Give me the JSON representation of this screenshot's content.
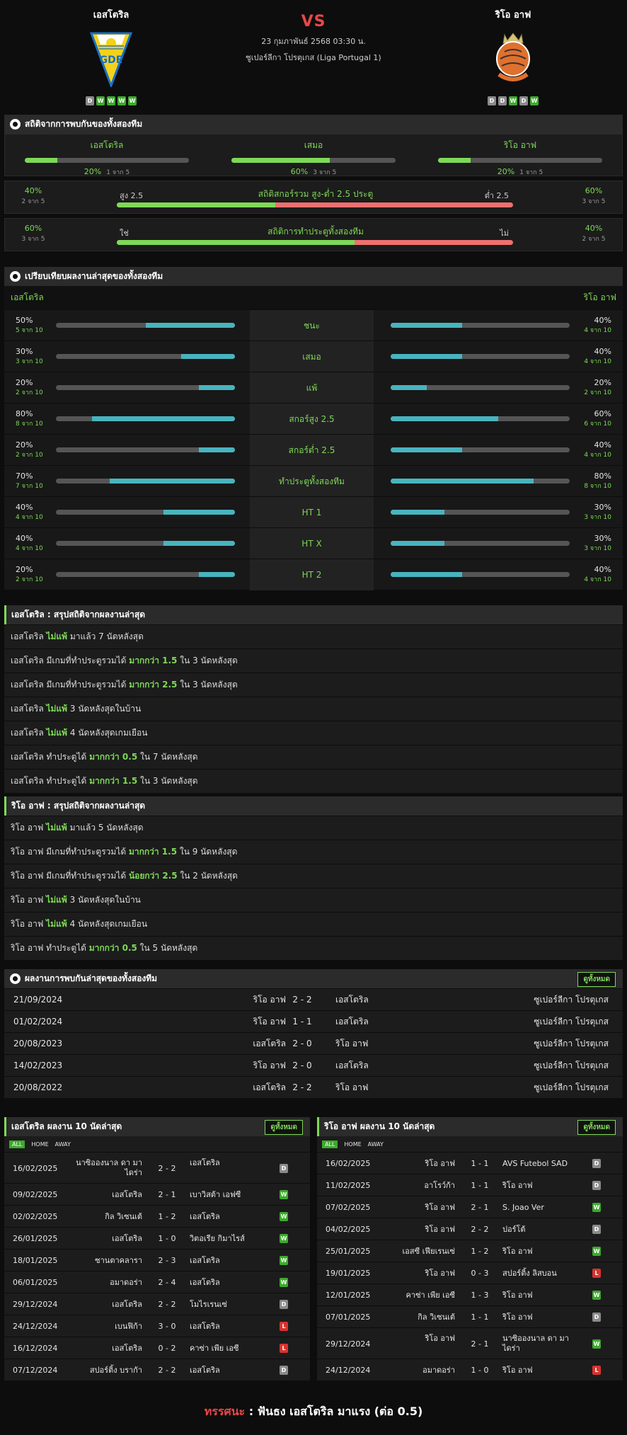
{
  "header": {
    "home_name": "เอสโตริล",
    "away_name": "ริโอ อาฟ",
    "vs": "VS",
    "datetime": "23 กุมภาพันธ์ 2568 03:30 น.",
    "league": "ซูเปอร์ลีกา โปรตุเกส (Liga Portugal 1)",
    "home_form": [
      "D",
      "W",
      "W",
      "W",
      "W"
    ],
    "away_form": [
      "D",
      "D",
      "W",
      "D",
      "W"
    ]
  },
  "h2h_stats": {
    "title": "สถิติจากการพบกันของทั้งสองทีม",
    "cols": [
      {
        "label": "เอสโตริล",
        "pct": "20%",
        "sub": "1 จาก 5",
        "value": 0.2
      },
      {
        "label": "เสมอ",
        "pct": "60%",
        "sub": "3 จาก 5",
        "value": 0.6
      },
      {
        "label": "ริโอ อาฟ",
        "pct": "20%",
        "sub": "1 จาก 5",
        "value": 0.2
      }
    ],
    "ou": {
      "title": "สถิติสกอร์รวม สูง-ต่ำ 2.5 ประตู",
      "left_label": "สูง 2.5",
      "right_label": "ต่ำ 2.5",
      "left_pct": "40%",
      "left_sub": "2 จาก 5",
      "right_pct": "60%",
      "right_sub": "3 จาก 5",
      "left_value": 0.4
    },
    "btts": {
      "title": "สถิติการทำประตูทั้งสองทีม",
      "left_label": "ใช่",
      "right_label": "ไม่",
      "left_pct": "60%",
      "left_sub": "3 จาก 5",
      "right_pct": "40%",
      "right_sub": "2 จาก 5",
      "left_value": 0.6
    }
  },
  "compare": {
    "title": "เปรียบเทียบผลงานล่าสุดของทั้งสองทีม",
    "home": "เอสโตริล",
    "away": "ริโอ อาฟ",
    "rows": [
      {
        "label": "ชนะ",
        "hp": "50%",
        "hs": "5 จาก 10",
        "hv": 0.5,
        "ap": "40%",
        "as": "4 จาก 10",
        "av": 0.4
      },
      {
        "label": "เสมอ",
        "hp": "30%",
        "hs": "3 จาก 10",
        "hv": 0.3,
        "ap": "40%",
        "as": "4 จาก 10",
        "av": 0.4
      },
      {
        "label": "แพ้",
        "hp": "20%",
        "hs": "2 จาก 10",
        "hv": 0.2,
        "ap": "20%",
        "as": "2 จาก 10",
        "av": 0.2
      },
      {
        "label": "สกอร์สูง 2.5",
        "hp": "80%",
        "hs": "8 จาก 10",
        "hv": 0.8,
        "ap": "60%",
        "as": "6 จาก 10",
        "av": 0.6
      },
      {
        "label": "สกอร์ต่ำ 2.5",
        "hp": "20%",
        "hs": "2 จาก 10",
        "hv": 0.2,
        "ap": "40%",
        "as": "4 จาก 10",
        "av": 0.4
      },
      {
        "label": "ทำประตูทั้งสองทีม",
        "hp": "70%",
        "hs": "7 จาก 10",
        "hv": 0.7,
        "ap": "80%",
        "as": "8 จาก 10",
        "av": 0.8
      },
      {
        "label": "HT 1",
        "hp": "40%",
        "hs": "4 จาก 10",
        "hv": 0.4,
        "ap": "30%",
        "as": "3 จาก 10",
        "av": 0.3
      },
      {
        "label": "HT X",
        "hp": "40%",
        "hs": "4 จาก 10",
        "hv": 0.4,
        "ap": "30%",
        "as": "3 จาก 10",
        "av": 0.3
      },
      {
        "label": "HT 2",
        "hp": "20%",
        "hs": "2 จาก 10",
        "hv": 0.2,
        "ap": "40%",
        "as": "4 จาก 10",
        "av": 0.4
      }
    ]
  },
  "home_streaks": {
    "title": "เอสโตริล : สรุปสถิติจากผลงานล่าสุด",
    "rows": [
      [
        "เอสโตริล ",
        "ไม่แพ้",
        " มาแล้ว 7 นัดหลังสุด"
      ],
      [
        "เอสโตริล มีเกมที่ทำประตูรวมได้ ",
        "มากกว่า 1.5",
        " ใน 3 นัดหลังสุด"
      ],
      [
        "เอสโตริล มีเกมที่ทำประตูรวมได้ ",
        "มากกว่า 2.5",
        " ใน 3 นัดหลังสุด"
      ],
      [
        "เอสโตริล ",
        "ไม่แพ้",
        " 3 นัดหลังสุดในบ้าน"
      ],
      [
        "เอสโตริล ",
        "ไม่แพ้",
        " 4 นัดหลังสุดเกมเยือน"
      ],
      [
        "เอสโตริล ทำประตูได้ ",
        "มากกว่า 0.5",
        " ใน 7 นัดหลังสุด"
      ],
      [
        "เอสโตริล ทำประตูได้ ",
        "มากกว่า 1.5",
        " ใน 3 นัดหลังสุด"
      ]
    ]
  },
  "away_streaks": {
    "title": "ริโอ อาฟ : สรุปสถิติจากผลงานล่าสุด",
    "rows": [
      [
        "ริโอ อาฟ ",
        "ไม่แพ้",
        " มาแล้ว 5 นัดหลังสุด"
      ],
      [
        "ริโอ อาฟ มีเกมที่ทำประตูรวมได้ ",
        "มากกว่า 1.5",
        " ใน 9 นัดหลังสุด"
      ],
      [
        "ริโอ อาฟ มีเกมที่ทำประตูรวมได้ ",
        "น้อยกว่า 2.5",
        " ใน 2 นัดหลังสุด"
      ],
      [
        "ริโอ อาฟ ",
        "ไม่แพ้",
        " 3 นัดหลังสุดในบ้าน"
      ],
      [
        "ริโอ อาฟ ",
        "ไม่แพ้",
        " 4 นัดหลังสุดเกมเยือน"
      ],
      [
        "ริโอ อาฟ ทำประตูได้ ",
        "มากกว่า 0.5",
        " ใน 5 นัดหลังสุด"
      ]
    ]
  },
  "h2h_results": {
    "title": "ผลงานการพบกันล่าสุดของทั้งสองทีม",
    "view_all": "ดูทั้งหมด",
    "rows": [
      {
        "date": "21/09/2024",
        "home": "ริโอ อาฟ",
        "score": "2 - 2",
        "away": "เอสโตริล",
        "league": "ซูเปอร์ลีกา โปรตุเกส"
      },
      {
        "date": "01/02/2024",
        "home": "ริโอ อาฟ",
        "score": "1 - 1",
        "away": "เอสโตริล",
        "league": "ซูเปอร์ลีกา โปรตุเกส"
      },
      {
        "date": "20/08/2023",
        "home": "เอสโตริล",
        "score": "2 - 0",
        "away": "ริโอ อาฟ",
        "league": "ซูเปอร์ลีกา โปรตุเกส"
      },
      {
        "date": "14/02/2023",
        "home": "ริโอ อาฟ",
        "score": "2 - 0",
        "away": "เอสโตริล",
        "league": "ซูเปอร์ลีกา โปรตุเกส"
      },
      {
        "date": "20/08/2022",
        "home": "เอสโตริล",
        "score": "2 - 2",
        "away": "ริโอ อาฟ",
        "league": "ซูเปอร์ลีกา โปรตุเกส"
      }
    ]
  },
  "home_last10": {
    "title": "เอสโตริล ผลงาน 10 นัดล่าสุด",
    "view_all": "ดูทั้งหมด",
    "tabs": [
      "ALL",
      "HOME",
      "AWAY"
    ],
    "rows": [
      {
        "date": "16/02/2025",
        "home": "นาซิอองนาล ดา มาไดร่า",
        "score": "2 - 2",
        "away": "เอสโตริล",
        "res": "D"
      },
      {
        "date": "09/02/2025",
        "home": "เอสโตริล",
        "score": "2 - 1",
        "away": "เบาวิสต้า เอฟซี",
        "res": "W"
      },
      {
        "date": "02/02/2025",
        "home": "กิล วิเซนเต้",
        "score": "1 - 2",
        "away": "เอสโตริล",
        "res": "W"
      },
      {
        "date": "26/01/2025",
        "home": "เอสโตริล",
        "score": "1 - 0",
        "away": "วิตอเรีย กิมาไรส์",
        "res": "W"
      },
      {
        "date": "18/01/2025",
        "home": "ซานตาคลารา",
        "score": "2 - 3",
        "away": "เอสโตริล",
        "res": "W"
      },
      {
        "date": "06/01/2025",
        "home": "อมาดอร่า",
        "score": "2 - 4",
        "away": "เอสโตริล",
        "res": "W"
      },
      {
        "date": "29/12/2024",
        "home": "เอสโตริล",
        "score": "2 - 2",
        "away": "โมไรเรนเซ่",
        "res": "D"
      },
      {
        "date": "24/12/2024",
        "home": "เบนฟิก้า",
        "score": "3 - 0",
        "away": "เอสโตริล",
        "res": "L"
      },
      {
        "date": "16/12/2024",
        "home": "เอสโตริล",
        "score": "0 - 2",
        "away": "คาซ่า เพีย เอซี",
        "res": "L"
      },
      {
        "date": "07/12/2024",
        "home": "สปอร์ติ้ง บรากัา",
        "score": "2 - 2",
        "away": "เอสโตริล",
        "res": "D"
      }
    ]
  },
  "away_last10": {
    "title": "ริโอ อาฟ ผลงาน 10 นัดล่าสุด",
    "view_all": "ดูทั้งหมด",
    "tabs": [
      "ALL",
      "HOME",
      "AWAY"
    ],
    "rows": [
      {
        "date": "16/02/2025",
        "home": "ริโอ อาฟ",
        "score": "1 - 1",
        "away": "AVS Futebol SAD",
        "res": "D"
      },
      {
        "date": "11/02/2025",
        "home": "อาโรว์ก้า",
        "score": "1 - 1",
        "away": "ริโอ อาฟ",
        "res": "D"
      },
      {
        "date": "07/02/2025",
        "home": "ริโอ อาฟ",
        "score": "2 - 1",
        "away": "S. Joao Ver",
        "res": "W"
      },
      {
        "date": "04/02/2025",
        "home": "ริโอ อาฟ",
        "score": "2 - 2",
        "away": "ปอร์โต้",
        "res": "D"
      },
      {
        "date": "25/01/2025",
        "home": "เอสซี เฟียเรนเซ่",
        "score": "1 - 2",
        "away": "ริโอ อาฟ",
        "res": "W"
      },
      {
        "date": "19/01/2025",
        "home": "ริโอ อาฟ",
        "score": "0 - 3",
        "away": "สปอร์ติ้ง ลิสบอน",
        "res": "L"
      },
      {
        "date": "12/01/2025",
        "home": "คาซ่า เพีย เอซี",
        "score": "1 - 3",
        "away": "ริโอ อาฟ",
        "res": "W"
      },
      {
        "date": "07/01/2025",
        "home": "กิล วิเซนเต้",
        "score": "1 - 1",
        "away": "ริโอ อาฟ",
        "res": "D"
      },
      {
        "date": "29/12/2024",
        "home": "ริโอ อาฟ",
        "score": "2 - 1",
        "away": "นาซิอองนาล ดา มาไดร่า",
        "res": "W"
      },
      {
        "date": "24/12/2024",
        "home": "อมาดอร่า",
        "score": "1 - 0",
        "away": "ริโอ อาฟ",
        "res": "L"
      }
    ]
  },
  "footer": {
    "label": "ทรรศนะ",
    "sep": " : ",
    "text": " ฟันธง เอสโตริล มาแรง (ต่อ 0.5)"
  },
  "colors": {
    "accent_green": "#7ed957",
    "bar_cyan": "#48b4bf",
    "over_green": "#7ed957",
    "under_red": "#f07070",
    "win": "#3daa2c",
    "draw": "#8a8a8a",
    "loss": "#d9322f"
  }
}
